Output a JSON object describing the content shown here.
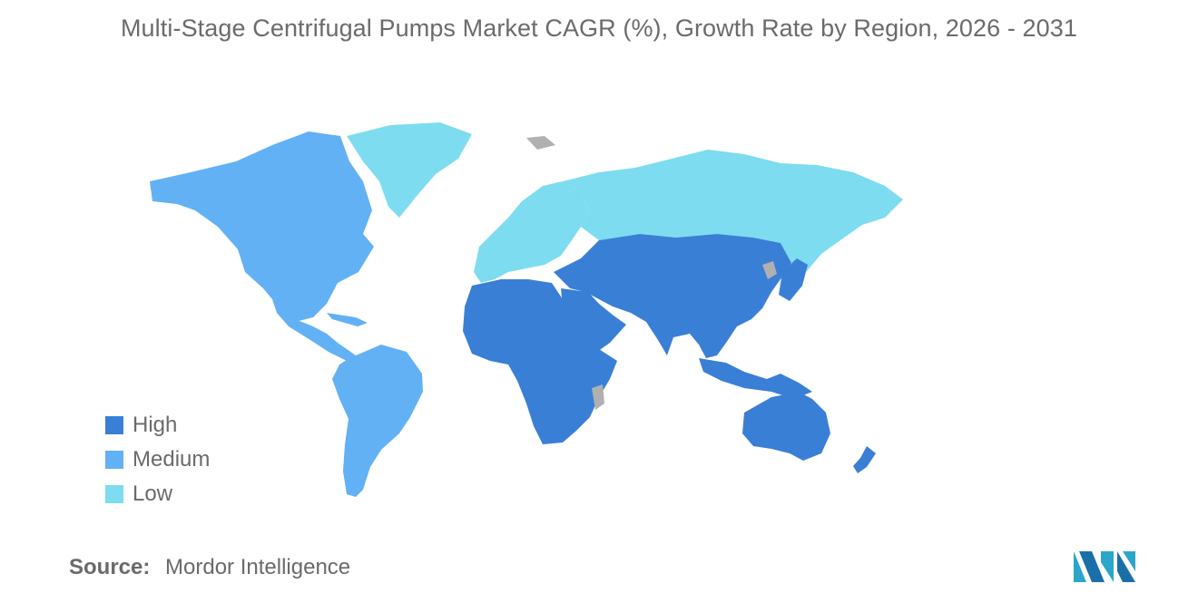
{
  "title": "Multi-Stage Centrifugal Pumps Market CAGR (%), Growth Rate by Region, 2026 - 2031",
  "colors": {
    "high": "#3a7fd6",
    "medium": "#62b1f5",
    "low": "#7ddcef",
    "no_data": "#b0b0b0"
  },
  "legend": [
    {
      "label": "High",
      "color": "#3a7fd6"
    },
    {
      "label": "Medium",
      "color": "#62b1f5"
    },
    {
      "label": "Low",
      "color": "#7ddcef"
    }
  ],
  "regions": {
    "north_america": "Medium",
    "south_america": "Medium",
    "greenland": "Low",
    "europe": "Low",
    "russia": "Low",
    "africa": "High",
    "middle_east": "High",
    "asia": "High",
    "oceania": "High"
  },
  "source": {
    "label": "Source:",
    "value": "Mordor Intelligence"
  },
  "logo": {
    "icon": "mordor-intelligence-logo-icon"
  }
}
